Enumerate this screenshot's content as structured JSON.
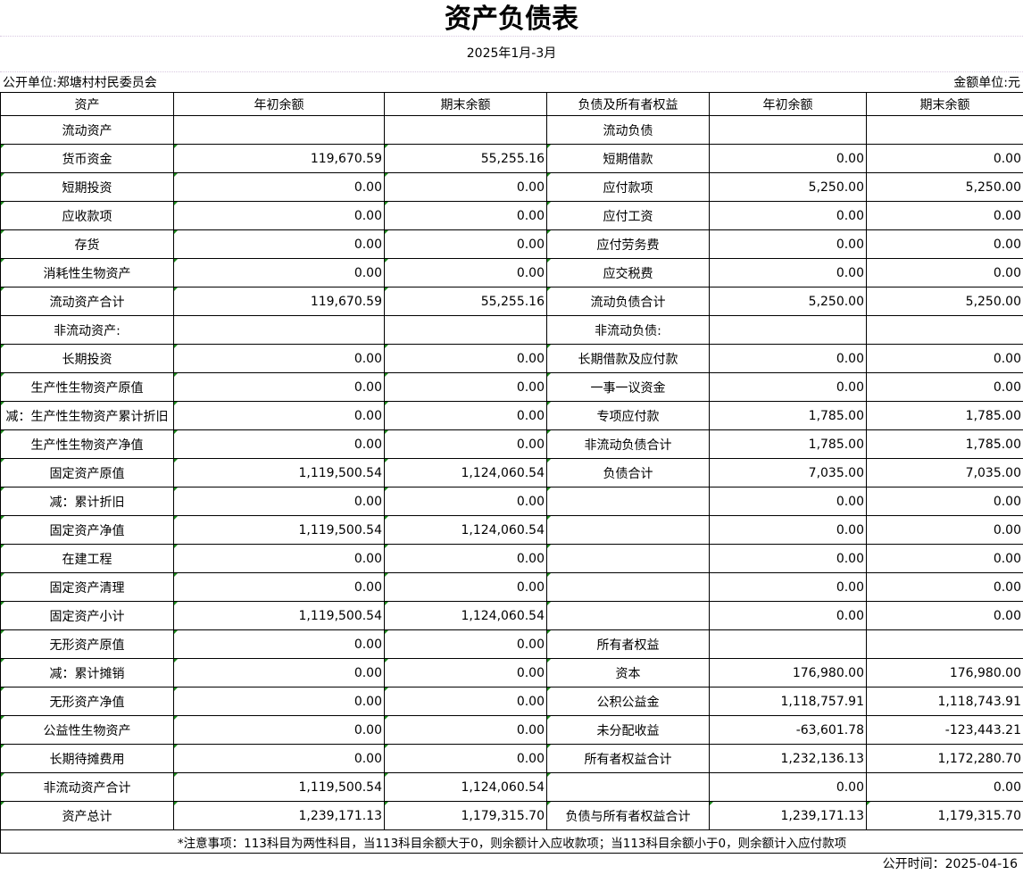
{
  "title": "资产负债表",
  "period": "2025年1月-3月",
  "unit_org": "公开单位:郑塘村村民委员会",
  "currency_unit": "金额单位:元",
  "headers": [
    "资产",
    "年初余额",
    "期末余额",
    "负债及所有者权益",
    "年初余额",
    "期末余额"
  ],
  "rows": [
    [
      "流动资产",
      "",
      "",
      "流动负债",
      "",
      ""
    ],
    [
      "货币资金",
      "119,670.59",
      "55,255.16",
      "短期借款",
      "0.00",
      "0.00"
    ],
    [
      "短期投资",
      "0.00",
      "0.00",
      "应付款项",
      "5,250.00",
      "5,250.00"
    ],
    [
      "应收款项",
      "0.00",
      "0.00",
      "应付工资",
      "0.00",
      "0.00"
    ],
    [
      "存货",
      "0.00",
      "0.00",
      "应付劳务费",
      "0.00",
      "0.00"
    ],
    [
      "消耗性生物资产",
      "0.00",
      "0.00",
      "应交税费",
      "0.00",
      "0.00"
    ],
    [
      "流动资产合计",
      "119,670.59",
      "55,255.16",
      "流动负债合计",
      "5,250.00",
      "5,250.00"
    ],
    [
      "非流动资产:",
      "",
      "",
      "非流动负债:",
      "",
      ""
    ],
    [
      "长期投资",
      "0.00",
      "0.00",
      "长期借款及应付款",
      "0.00",
      "0.00"
    ],
    [
      "生产性生物资产原值",
      "0.00",
      "0.00",
      "一事一议资金",
      "0.00",
      "0.00"
    ],
    [
      "减：生产性生物资产累计折旧",
      "0.00",
      "0.00",
      "专项应付款",
      "1,785.00",
      "1,785.00"
    ],
    [
      "生产性生物资产净值",
      "0.00",
      "0.00",
      "非流动负债合计",
      "1,785.00",
      "1,785.00"
    ],
    [
      "固定资产原值",
      "1,119,500.54",
      "1,124,060.54",
      "负债合计",
      "7,035.00",
      "7,035.00"
    ],
    [
      "减：累计折旧",
      "0.00",
      "0.00",
      "",
      "0.00",
      "0.00"
    ],
    [
      "固定资产净值",
      "1,119,500.54",
      "1,124,060.54",
      "",
      "0.00",
      "0.00"
    ],
    [
      "在建工程",
      "0.00",
      "0.00",
      "",
      "0.00",
      "0.00"
    ],
    [
      "固定资产清理",
      "0.00",
      "0.00",
      "",
      "0.00",
      "0.00"
    ],
    [
      "固定资产小计",
      "1,119,500.54",
      "1,124,060.54",
      "",
      "0.00",
      "0.00"
    ],
    [
      "无形资产原值",
      "0.00",
      "0.00",
      "所有者权益",
      "",
      ""
    ],
    [
      "减：累计摊销",
      "0.00",
      "0.00",
      "资本",
      "176,980.00",
      "176,980.00"
    ],
    [
      "无形资产净值",
      "0.00",
      "0.00",
      "公积公益金",
      "1,118,757.91",
      "1,118,743.91"
    ],
    [
      "公益性生物资产",
      "0.00",
      "0.00",
      "未分配收益",
      "-63,601.78",
      "-123,443.21"
    ],
    [
      "长期待摊费用",
      "0.00",
      "0.00",
      "所有者权益合计",
      "1,232,136.13",
      "1,172,280.70"
    ],
    [
      "非流动资产合计",
      "1,119,500.54",
      "1,124,060.54",
      "",
      "0.00",
      "0.00"
    ],
    [
      "资产总计",
      "1,239,171.13",
      "1,179,315.70",
      "负债与所有者权益合计",
      "1,239,171.13",
      "1,179,315.70"
    ]
  ],
  "note": "*注意事项：113科目为两性科目，当113科目余额大于0，则余额计入应收款项；当113科目余额小于0，则余额计入应付款项",
  "publish_time": "公开时间：2025-04-16",
  "colors": {
    "error_indicator": "#1a8a1a",
    "border": "#000000"
  }
}
